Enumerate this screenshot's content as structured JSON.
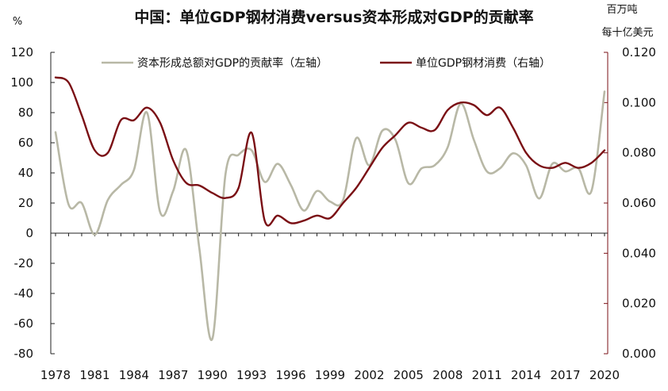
{
  "chart_data": {
    "type": "line",
    "title": "中国：单位GDP钢材消费versus资本形成对GDP的贡献率",
    "left_axis": {
      "unit": "%",
      "ylim": [
        -80,
        120
      ],
      "ticks": [
        120,
        100,
        80,
        60,
        40,
        20,
        0,
        -20,
        -40,
        -60,
        -80
      ],
      "tick_labels": [
        "120",
        "100",
        "80",
        "60",
        "40",
        "20",
        "0",
        "-20",
        "-40",
        "-60",
        "-80"
      ]
    },
    "right_axis": {
      "unit_line1": "百万吨",
      "unit_line2": "每十亿美元",
      "ylim": [
        0,
        0.12
      ],
      "ticks": [
        0.12,
        0.1,
        0.08,
        0.06,
        0.04,
        0.02,
        0
      ],
      "tick_labels": [
        "0.120",
        "0.100",
        "0.080",
        "0.060",
        "0.040",
        "0.020",
        "0.000"
      ]
    },
    "x": [
      1978,
      1979,
      1980,
      1981,
      1982,
      1983,
      1984,
      1985,
      1986,
      1987,
      1988,
      1989,
      1990,
      1991,
      1992,
      1993,
      1994,
      1995,
      1996,
      1997,
      1998,
      1999,
      2000,
      2001,
      2002,
      2003,
      2004,
      2005,
      2006,
      2007,
      2008,
      2009,
      2010,
      2011,
      2012,
      2013,
      2014,
      2015,
      2016,
      2017,
      2018,
      2019,
      2020
    ],
    "x_tick_labels": [
      "1978",
      "1981",
      "1984",
      "1987",
      "1990",
      "1993",
      "1996",
      "1999",
      "2002",
      "2005",
      "2008",
      "2011",
      "2014",
      "2017",
      "2020"
    ],
    "series": [
      {
        "name": "资本形成总额对GDP的贡献率（左轴）",
        "axis": "left",
        "color": "#b8b8a6",
        "values": [
          67,
          19,
          20,
          -1,
          22,
          32,
          42,
          80,
          14,
          28,
          55,
          -10,
          -70,
          39,
          52,
          55,
          34,
          46,
          32,
          15,
          28,
          21,
          22,
          63,
          45,
          68,
          62,
          33,
          43,
          45,
          57,
          86,
          62,
          41,
          43,
          53,
          45,
          23,
          46,
          41,
          43,
          28,
          94
        ]
      },
      {
        "name": "单位GDP钢材消费（右轴）",
        "axis": "right",
        "color": "#7a0f14",
        "values": [
          0.11,
          0.108,
          0.095,
          0.081,
          0.08,
          0.093,
          0.093,
          0.098,
          0.092,
          0.077,
          0.068,
          0.067,
          0.064,
          0.062,
          0.066,
          0.088,
          0.053,
          0.055,
          0.052,
          0.053,
          0.055,
          0.054,
          0.06,
          0.066,
          0.074,
          0.082,
          0.087,
          0.092,
          0.09,
          0.089,
          0.097,
          0.1,
          0.099,
          0.095,
          0.098,
          0.09,
          0.08,
          0.075,
          0.074,
          0.076,
          0.074,
          0.076,
          0.081
        ]
      }
    ]
  }
}
